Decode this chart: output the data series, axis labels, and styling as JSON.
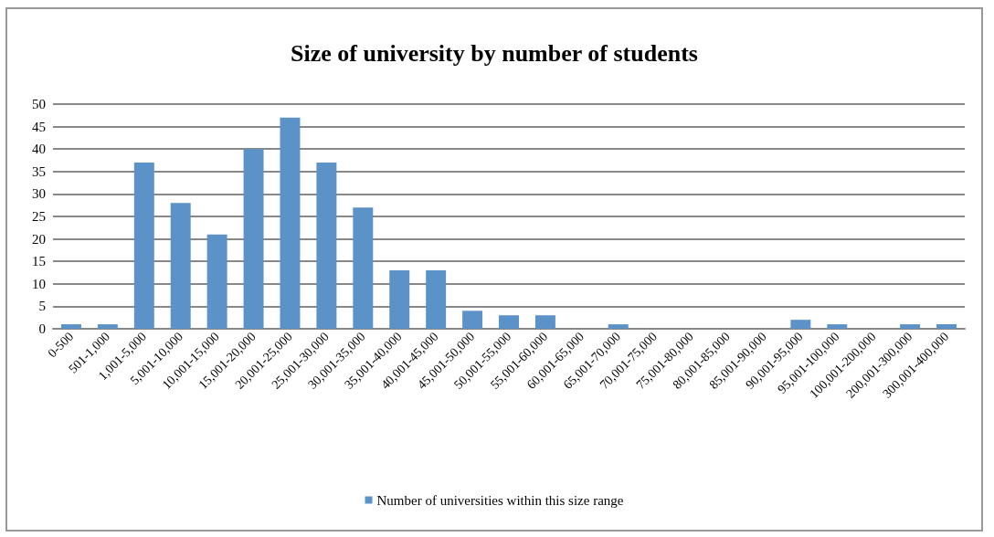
{
  "chart_data": {
    "type": "bar",
    "title": "Size of university by number of students",
    "categories": [
      "0-500",
      "501-1,000",
      "1,001-5,000",
      "5,001-10,000",
      "10,001-15,000",
      "15,001-20,000",
      "20,001-25,000",
      "25,001-30,000",
      "30,001-35,000",
      "35,001-40,000",
      "40,001-45,000",
      "45,001-50,000",
      "50,001-55,000",
      "55,001-60,000",
      "60,001-65,000",
      "65,001-70,000",
      "70,001-75,000",
      "75,001-80,000",
      "80,001-85,000",
      "85,001-90,000",
      "90,001-95,000",
      "95,001-100,000",
      "100,001-200,000",
      "200,001-300,000",
      "300,001-400,000"
    ],
    "series": [
      {
        "name": "Number of universities within this size range",
        "color": "#5b92c7",
        "values": [
          1,
          1,
          37,
          28,
          21,
          40,
          47,
          37,
          27,
          13,
          13,
          4,
          3,
          3,
          0,
          1,
          0,
          0,
          0,
          0,
          2,
          1,
          0,
          1,
          1
        ]
      }
    ],
    "ylim": [
      0,
      50
    ],
    "yticks": [
      0,
      5,
      10,
      15,
      20,
      25,
      30,
      35,
      40,
      45,
      50
    ],
    "grid": "y",
    "legend": "bottom"
  }
}
